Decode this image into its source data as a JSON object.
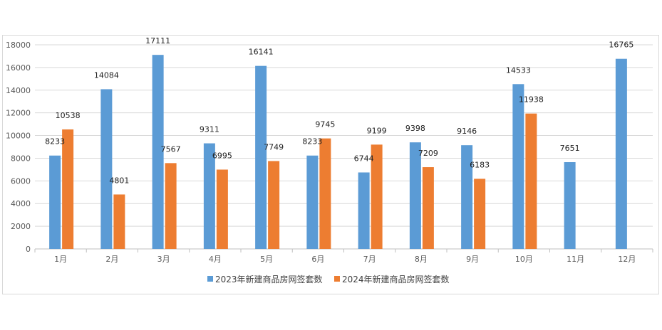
{
  "chart_data": {
    "type": "bar",
    "categories": [
      "1月",
      "2月",
      "3月",
      "4月",
      "5月",
      "6月",
      "7月",
      "8月",
      "9月",
      "10月",
      "11月",
      "12月"
    ],
    "series": [
      {
        "name": "2023年新建商品房网签套数",
        "color": "#5b9bd5",
        "values": [
          8233,
          14084,
          17111,
          9311,
          16141,
          8233,
          6744,
          9398,
          9146,
          14533,
          7651,
          16765
        ]
      },
      {
        "name": "2024年新建商品房网签套数",
        "color": "#ed7d31",
        "values": [
          10538,
          4801,
          7567,
          6995,
          7749,
          9745,
          9199,
          7209,
          6183,
          11938,
          null,
          null
        ]
      }
    ],
    "ylim": [
      0,
      18000
    ],
    "yticks": [
      0,
      2000,
      4000,
      6000,
      8000,
      10000,
      12000,
      14000,
      16000,
      18000
    ],
    "grid": true,
    "legend_position": "bottom"
  }
}
